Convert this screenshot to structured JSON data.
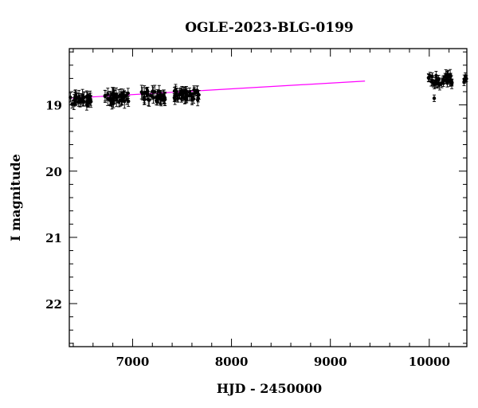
{
  "chart_data": {
    "type": "scatter",
    "title": "OGLE-2023-BLG-0199",
    "xlabel": "HJD - 2450000",
    "ylabel": "I magnitude",
    "xlim": [
      6360,
      10380
    ],
    "ylim": [
      22.65,
      18.15
    ],
    "y_inverted": true,
    "x_ticks": [
      7000,
      8000,
      9000,
      10000
    ],
    "y_ticks": [
      19,
      20,
      21,
      22
    ],
    "grid": false,
    "marker_color": "#000000",
    "model_color": "#ff00ff",
    "data_clusters": [
      {
        "x_start": 6370,
        "x_end": 6580,
        "mag": 18.92,
        "err": 0.08,
        "count": 36
      },
      {
        "x_start": 6720,
        "x_end": 6960,
        "mag": 18.9,
        "err": 0.08,
        "count": 40
      },
      {
        "x_start": 7090,
        "x_end": 7330,
        "mag": 18.87,
        "err": 0.08,
        "count": 40
      },
      {
        "x_start": 7420,
        "x_end": 7680,
        "mag": 18.85,
        "err": 0.07,
        "count": 44
      },
      {
        "x_start": 9990,
        "x_end": 10230,
        "mag": 18.62,
        "err": 0.06,
        "count": 40
      },
      {
        "x_start": 10340,
        "x_end": 10380,
        "mag": 18.58,
        "err": 0.05,
        "count": 5
      }
    ],
    "outliers": [
      {
        "x": 10050,
        "mag": 18.9,
        "err": 0.05
      }
    ],
    "model_line": {
      "x": [
        6360,
        9350
      ],
      "mag": [
        18.9,
        18.64
      ]
    }
  }
}
